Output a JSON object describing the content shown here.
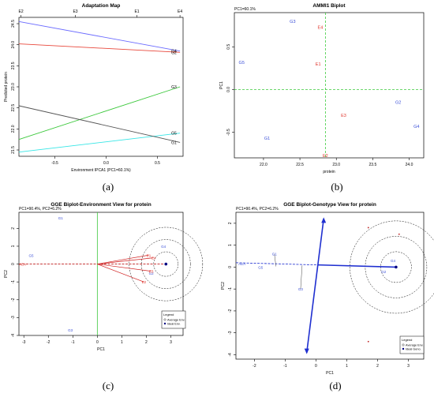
{
  "figure": {
    "captions": [
      "(a)",
      "(b)",
      "(c)",
      "(d)"
    ]
  },
  "chart_data": [
    {
      "type": "line",
      "panel": "a",
      "title": "Adaptation Map",
      "xlabel": "Environment IPCA1 (PC1=60.1%)",
      "ylabel": "Predicted protein",
      "xlim": [
        -0.85,
        0.75
      ],
      "ylim": [
        21.35,
        24.65
      ],
      "xticks": [
        -0.5,
        0.0,
        0.5
      ],
      "yticks": [
        21.5,
        22.0,
        22.5,
        23.0,
        23.5,
        24.0,
        24.5
      ],
      "top_axis": {
        "labels": [
          "E2",
          "E3",
          "E1",
          "E4"
        ],
        "positions": [
          -0.83,
          -0.3,
          0.3,
          0.72
        ]
      },
      "series": [
        {
          "name": "G4",
          "color": "#6b6bff",
          "x": [
            -0.85,
            0.72
          ],
          "y": [
            24.55,
            23.85
          ]
        },
        {
          "name": "G2",
          "color": "#e8483c",
          "x": [
            -0.85,
            0.72
          ],
          "y": [
            24.02,
            23.82
          ]
        },
        {
          "name": "G3",
          "color": "#3cc83c",
          "x": [
            -0.85,
            0.72
          ],
          "y": [
            21.75,
            23.0
          ]
        },
        {
          "name": "G5",
          "color": "#37e6e6",
          "x": [
            -0.85,
            0.72
          ],
          "y": [
            21.45,
            21.9
          ]
        },
        {
          "name": "G1",
          "color": "#555555",
          "x": [
            -0.85,
            0.72
          ],
          "y": [
            22.55,
            21.68
          ]
        }
      ]
    },
    {
      "type": "scatter",
      "panel": "b",
      "title": "AMMI1 Biplot",
      "subtitle": "PC1=60.1%",
      "xlabel": "protein",
      "ylabel": "PC1",
      "xlim": [
        21.6,
        24.2
      ],
      "ylim": [
        -0.8,
        0.9
      ],
      "xticks": [
        22.0,
        22.5,
        23.0,
        23.5,
        24.0
      ],
      "yticks": [
        -0.5,
        0.0,
        0.5
      ],
      "ref_x": 22.85,
      "ref_y": 0.0,
      "points": [
        {
          "label": "G3",
          "x": 22.4,
          "y": 0.8,
          "color": "#3a4fd8"
        },
        {
          "label": "E4",
          "x": 22.78,
          "y": 0.73,
          "color": "#e0342c"
        },
        {
          "label": "G5",
          "x": 21.7,
          "y": 0.32,
          "color": "#3a4fd8"
        },
        {
          "label": "E1",
          "x": 22.75,
          "y": 0.3,
          "color": "#e0342c"
        },
        {
          "label": "G2",
          "x": 23.85,
          "y": -0.15,
          "color": "#3a4fd8"
        },
        {
          "label": "E3",
          "x": 23.1,
          "y": -0.3,
          "color": "#e0342c"
        },
        {
          "label": "G4",
          "x": 24.1,
          "y": -0.43,
          "color": "#3a4fd8"
        },
        {
          "label": "G1",
          "x": 22.05,
          "y": -0.57,
          "color": "#3a4fd8"
        },
        {
          "label": "E2",
          "x": 22.85,
          "y": -0.77,
          "color": "#e0342c"
        }
      ]
    },
    {
      "type": "scatter",
      "panel": "c",
      "title": "GGE Biplot-Environment View for protein",
      "subtitle": "PC1=90.4%, PC2=6.2%",
      "xlabel": "PC1",
      "ylabel": "PC2",
      "xlim": [
        -3.2,
        3.5
      ],
      "ylim": [
        -4.0,
        2.9
      ],
      "xticks": [
        -3,
        -2,
        -1,
        0,
        1,
        2,
        3
      ],
      "yticks": [
        -4,
        -3,
        -2,
        -1,
        0,
        1,
        2
      ],
      "legend": {
        "title": "Legend",
        "items": [
          "Average Env.",
          "Ideal Env."
        ],
        "position": "bottom-right"
      },
      "points": [
        {
          "label": "G1",
          "x": -1.5,
          "y": 2.6,
          "color": "#3a4fd8"
        },
        {
          "label": "G5",
          "x": -2.7,
          "y": 0.5,
          "color": "#3a4fd8"
        },
        {
          "label": "AEA",
          "x": -3.05,
          "y": 0.0,
          "color": "#e0342c"
        },
        {
          "label": "G3",
          "x": -1.1,
          "y": -3.7,
          "color": "#3a4fd8"
        },
        {
          "label": "G4",
          "x": 2.7,
          "y": 1.0,
          "color": "#3a4fd8"
        },
        {
          "label": "G2",
          "x": 2.2,
          "y": -0.5,
          "color": "#3a4fd8"
        },
        {
          "label": "E1",
          "x": 2.1,
          "y": 0.5,
          "color": "#e0342c"
        },
        {
          "label": "E2",
          "x": 1.9,
          "y": -1.0,
          "color": "#e0342c"
        },
        {
          "label": "E3",
          "x": 2.2,
          "y": -0.4,
          "color": "#e0342c"
        },
        {
          "label": "E4",
          "x": 2.3,
          "y": 0.35,
          "color": "#e0342c"
        }
      ],
      "ideal": {
        "x": 2.8,
        "y": 0.0
      },
      "circle_radii": [
        0.5,
        1.0,
        1.5
      ]
    },
    {
      "type": "scatter",
      "panel": "d",
      "title": "GGE Biplot-Genotype View for protein",
      "subtitle": "PC1=90.4%, PC2=6.2%",
      "xlabel": "PC1",
      "ylabel": "PC2",
      "xlim": [
        -2.6,
        3.5
      ],
      "ylim": [
        -4.2,
        2.5
      ],
      "xticks": [
        -2,
        -1,
        0,
        1,
        2,
        3
      ],
      "yticks": [
        -4,
        -3,
        -2,
        -1,
        0,
        1,
        2
      ],
      "legend": {
        "title": "Legend",
        "items": [
          "Average Env.",
          "Ideal Geno."
        ],
        "position": "bottom-right"
      },
      "points": [
        {
          "label": "G1",
          "x": -1.35,
          "y": 0.6,
          "color": "#3a4fd8"
        },
        {
          "label": "G3",
          "x": -0.5,
          "y": -1.0,
          "color": "#3a4fd8"
        },
        {
          "label": "G4",
          "x": 2.5,
          "y": 0.3,
          "color": "#3a4fd8"
        },
        {
          "label": "G2",
          "x": 2.2,
          "y": -0.2,
          "color": "#3a4fd8"
        },
        {
          "label": "G5",
          "x": -1.8,
          "y": 0.0,
          "color": "#3a4fd8"
        },
        {
          "label": "AEA",
          "x": -2.4,
          "y": 0.15,
          "color": "#3a4fd8"
        }
      ],
      "ideal": {
        "x": 2.6,
        "y": 0.0
      },
      "circle_radii": [
        0.5,
        1.0,
        1.5
      ]
    }
  ]
}
